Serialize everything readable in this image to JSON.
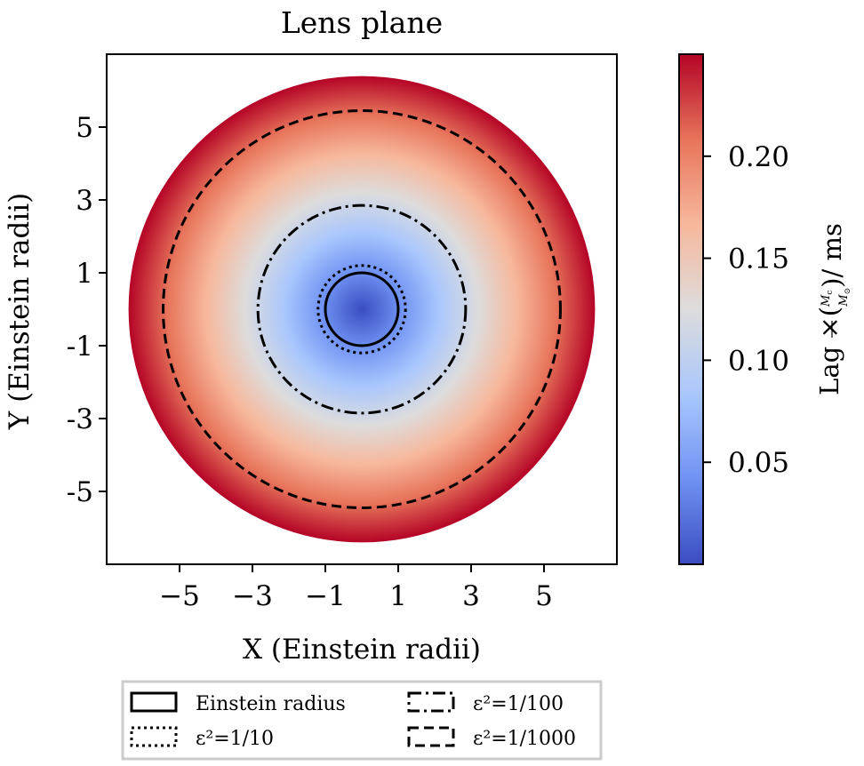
{
  "chart_data": {
    "type": "heatmap",
    "title": "Lens plane",
    "xlabel": "X (Einstein radii)",
    "ylabel": "Y (Einstein radii)",
    "x_ticks": [
      "−5",
      "−3",
      "−1",
      "1",
      "3",
      "5"
    ],
    "y_ticks": [
      "5",
      "3",
      "1",
      "-1",
      "-3",
      "-5"
    ],
    "x_tick_values": [
      -5,
      -3,
      -1,
      1,
      3,
      5
    ],
    "y_tick_values": [
      5,
      3,
      1,
      -1,
      -3,
      -5
    ],
    "xlim": [
      -7,
      7
    ],
    "ylim": [
      -7,
      7
    ],
    "disk_radius": 6.4,
    "grid": false,
    "colormap": "coolwarm",
    "colormap_stops": [
      "#3b4cc0",
      "#6f92f3",
      "#aac7fd",
      "#dddcdc",
      "#f7b89c",
      "#e7745b",
      "#b40426"
    ],
    "colorbar": {
      "label": "Lag ×(",
      "label_fraction_num": "M",
      "label_fraction_num_sub": "c",
      "label_fraction_den": "M",
      "label_fraction_den_sub": "⊙",
      "label_suffix": ")/ ms",
      "ticks": [
        "0.05",
        "0.10",
        "0.15",
        "0.20"
      ],
      "tick_values": [
        0.05,
        0.1,
        0.15,
        0.2
      ],
      "range": [
        0.0,
        0.25
      ]
    },
    "contours": [
      {
        "label": "Einstein radius",
        "radius": 1.0,
        "style": "solid"
      },
      {
        "label": "ε²=1/10",
        "radius": 1.2,
        "style": "dotted"
      },
      {
        "label": "ε²=1/100",
        "radius": 2.85,
        "style": "dashdot"
      },
      {
        "label": "ε²=1/1000",
        "radius": 5.45,
        "style": "dashed"
      }
    ],
    "legend_position": "bottom-center"
  },
  "colors": {
    "axes": "#000000",
    "legend_border": "#cccccc",
    "background": "#ffffff"
  }
}
